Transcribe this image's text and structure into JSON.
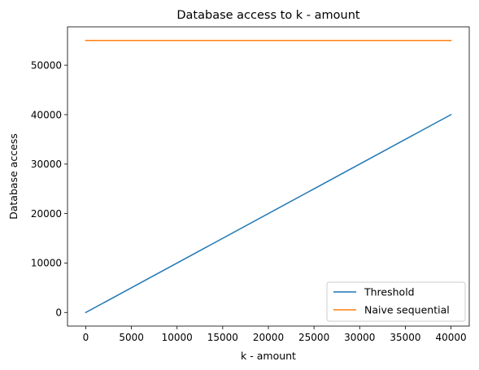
{
  "chart_data": {
    "type": "line",
    "title": "Database access to k - amount",
    "xlabel": "k - amount",
    "ylabel": "Database access",
    "xlim": [
      -2000,
      42000
    ],
    "ylim": [
      -2750,
      57750
    ],
    "xticks": [
      0,
      5000,
      10000,
      15000,
      20000,
      25000,
      30000,
      35000,
      40000
    ],
    "yticks": [
      0,
      10000,
      20000,
      30000,
      40000,
      50000
    ],
    "grid": false,
    "legend_position": "lower-right",
    "series": [
      {
        "name": "Threshold",
        "color": "#1f77b4",
        "x": [
          0,
          40000
        ],
        "y": [
          0,
          40000
        ]
      },
      {
        "name": "Naive sequential",
        "color": "#ff7f0e",
        "x": [
          0,
          40000
        ],
        "y": [
          55000,
          55000
        ]
      }
    ]
  }
}
